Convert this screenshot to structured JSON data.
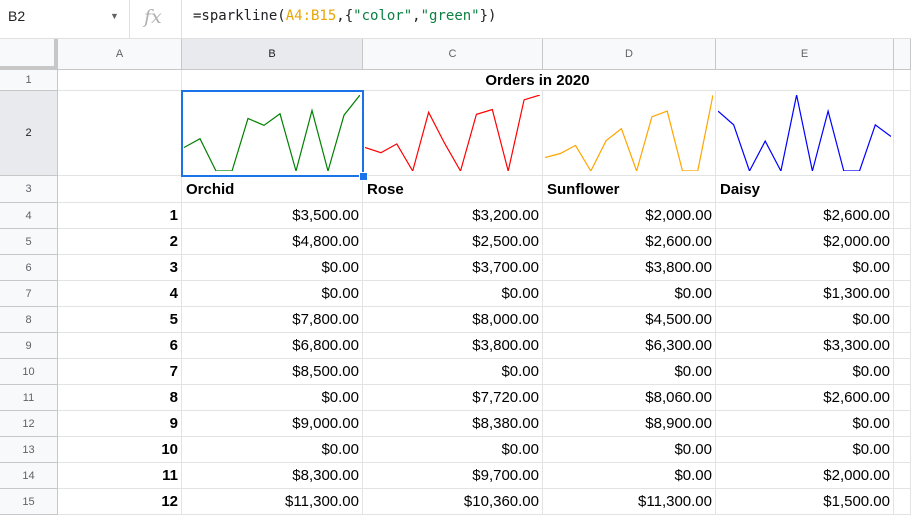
{
  "namebox": {
    "value": "B2"
  },
  "fx_label": "fx",
  "formula": {
    "prefix": "=sparkline(",
    "range": "A4:B15",
    "mid": ",{",
    "key": "\"color\"",
    "comma": ",",
    "val": "\"green\"",
    "suffix": "})"
  },
  "columns": [
    "A",
    "B",
    "C",
    "D",
    "E"
  ],
  "rows": [
    "1",
    "2",
    "3",
    "4",
    "5",
    "6",
    "7",
    "8",
    "9",
    "10",
    "11",
    "12",
    "13",
    "14",
    "15"
  ],
  "title": "Orders in 2020",
  "headers": [
    "Orchid",
    "Rose",
    "Sunflower",
    "Daisy"
  ],
  "sparkline_colors": {
    "Orchid": "#008000",
    "Rose": "#ff0000",
    "Sunflower": "#ffa500",
    "Daisy": "#0000ff"
  },
  "table": [
    {
      "n": "1",
      "v": [
        "$3,500.00",
        "$3,200.00",
        "$2,000.00",
        "$2,600.00"
      ]
    },
    {
      "n": "2",
      "v": [
        "$4,800.00",
        "$2,500.00",
        "$2,600.00",
        "$2,000.00"
      ]
    },
    {
      "n": "3",
      "v": [
        "$0.00",
        "$3,700.00",
        "$3,800.00",
        "$0.00"
      ]
    },
    {
      "n": "4",
      "v": [
        "$0.00",
        "$0.00",
        "$0.00",
        "$1,300.00"
      ]
    },
    {
      "n": "5",
      "v": [
        "$7,800.00",
        "$8,000.00",
        "$4,500.00",
        "$0.00"
      ]
    },
    {
      "n": "6",
      "v": [
        "$6,800.00",
        "$3,800.00",
        "$6,300.00",
        "$3,300.00"
      ]
    },
    {
      "n": "7",
      "v": [
        "$8,500.00",
        "$0.00",
        "$0.00",
        "$0.00"
      ]
    },
    {
      "n": "8",
      "v": [
        "$0.00",
        "$7,720.00",
        "$8,060.00",
        "$2,600.00"
      ]
    },
    {
      "n": "9",
      "v": [
        "$9,000.00",
        "$8,380.00",
        "$8,900.00",
        "$0.00"
      ]
    },
    {
      "n": "10",
      "v": [
        "$0.00",
        "$0.00",
        "$0.00",
        "$0.00"
      ]
    },
    {
      "n": "11",
      "v": [
        "$8,300.00",
        "$9,700.00",
        "$0.00",
        "$2,000.00"
      ]
    },
    {
      "n": "12",
      "v": [
        "$11,300.00",
        "$10,360.00",
        "$11,300.00",
        "$1,500.00"
      ]
    }
  ]
}
